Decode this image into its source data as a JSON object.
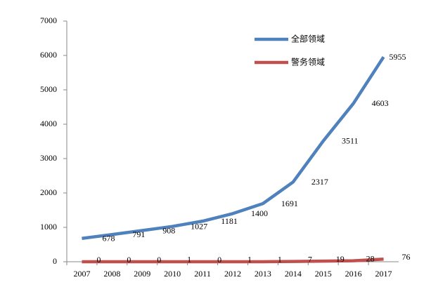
{
  "chart_data": {
    "type": "line",
    "categories": [
      "2007",
      "2008",
      "2009",
      "2010",
      "2011",
      "2012",
      "2013",
      "2014",
      "2015",
      "2016",
      "2017"
    ],
    "series": [
      {
        "name": "全部领域",
        "color": "#4f81bd",
        "values": [
          678,
          791,
          908,
          1027,
          1181,
          1400,
          1691,
          2317,
          3511,
          4603,
          5955
        ]
      },
      {
        "name": "警务领域",
        "color": "#c0504d",
        "values": [
          0,
          0,
          0,
          1,
          0,
          1,
          1,
          7,
          19,
          28,
          76
        ]
      }
    ],
    "ylim": [
      0,
      7000
    ],
    "yticks": [
      0,
      1000,
      2000,
      3000,
      4000,
      5000,
      6000,
      7000
    ],
    "grid": false,
    "legend": "upper right"
  }
}
